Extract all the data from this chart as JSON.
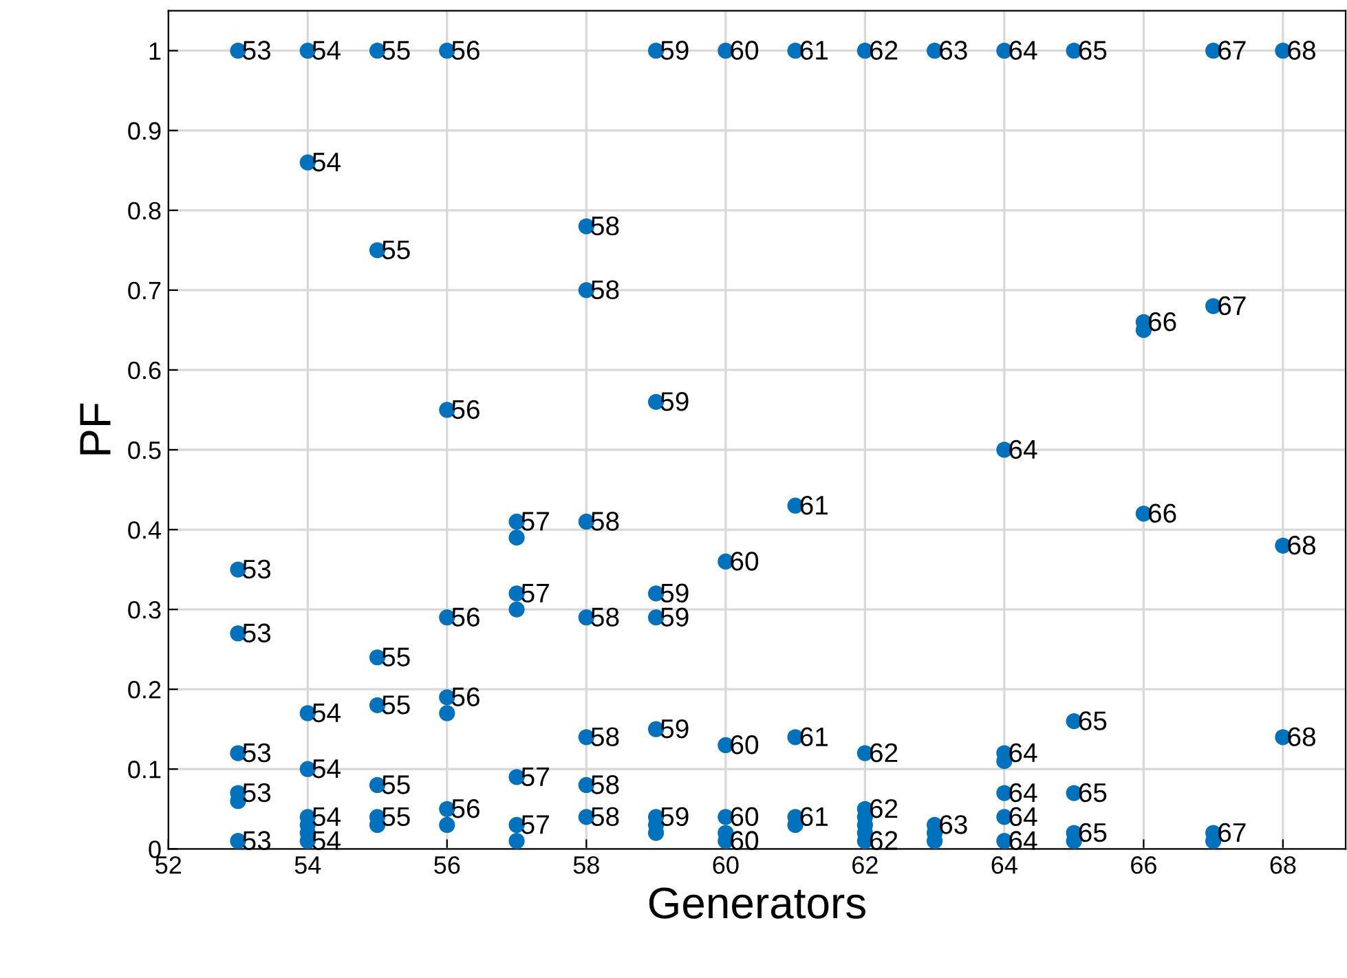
{
  "chart_data": {
    "type": "scatter",
    "xlabel": "Generators",
    "ylabel": "PF",
    "xlim": [
      52,
      68.9
    ],
    "ylim": [
      0,
      1.05
    ],
    "xticks": [
      52,
      54,
      56,
      58,
      60,
      62,
      64,
      66,
      68
    ],
    "yticks": [
      0,
      0.1,
      0.2,
      0.3,
      0.4,
      0.5,
      0.6,
      0.7,
      0.8,
      0.9,
      1
    ],
    "grid": true,
    "marker": "circle",
    "series": [
      {
        "color": "#0072bd",
        "x": [
          53,
          53,
          53,
          53,
          53,
          53,
          53,
          54,
          54,
          54,
          54,
          54,
          54,
          54,
          54,
          55,
          55,
          55,
          55,
          55,
          55,
          55,
          56,
          56,
          56,
          56,
          56,
          56,
          56,
          57,
          57,
          57,
          57,
          57,
          57,
          57,
          58,
          58,
          58,
          58,
          58,
          58,
          58,
          59,
          59,
          59,
          59,
          59,
          59,
          59,
          59,
          60,
          60,
          60,
          60,
          60,
          60,
          61,
          61,
          61,
          61,
          61,
          62,
          62,
          62,
          62,
          62,
          62,
          62,
          63,
          63,
          63,
          63,
          64,
          64,
          64,
          64,
          64,
          64,
          64,
          65,
          65,
          65,
          65,
          65,
          66,
          66,
          66,
          67,
          67,
          67,
          67,
          68,
          68,
          68
        ],
        "values": [
          1,
          0.35,
          0.27,
          0.12,
          0.07,
          0.06,
          0.01,
          1,
          0.86,
          0.17,
          0.1,
          0.04,
          0.03,
          0.02,
          0.01,
          1,
          0.75,
          0.24,
          0.18,
          0.08,
          0.04,
          0.03,
          1,
          0.55,
          0.29,
          0.19,
          0.17,
          0.05,
          0.03,
          0.41,
          0.39,
          0.32,
          0.3,
          0.09,
          0.03,
          0.01,
          0.78,
          0.7,
          0.41,
          0.29,
          0.14,
          0.08,
          0.04,
          1,
          0.56,
          0.32,
          0.29,
          0.15,
          0.04,
          0.03,
          0.02,
          1,
          0.36,
          0.13,
          0.04,
          0.02,
          0.01,
          1,
          0.43,
          0.14,
          0.04,
          0.03,
          1,
          0.12,
          0.05,
          0.04,
          0.03,
          0.02,
          0.01,
          1,
          0.03,
          0.02,
          0.01,
          1,
          0.5,
          0.12,
          0.11,
          0.07,
          0.04,
          0.01,
          1,
          0.16,
          0.07,
          0.02,
          0.01,
          0.66,
          0.65,
          0.42,
          1,
          0.68,
          0.02,
          0.01,
          1,
          0.38,
          0.14
        ]
      }
    ],
    "annotations": [
      {
        "text": "53",
        "x": 53,
        "y": 1
      },
      {
        "text": "53",
        "x": 53,
        "y": 0.35
      },
      {
        "text": "53",
        "x": 53,
        "y": 0.27
      },
      {
        "text": "53",
        "x": 53,
        "y": 0.12
      },
      {
        "text": "53",
        "x": 53,
        "y": 0.07
      },
      {
        "text": "53",
        "x": 53,
        "y": 0.01
      },
      {
        "text": "54",
        "x": 54,
        "y": 1
      },
      {
        "text": "54",
        "x": 54,
        "y": 0.86
      },
      {
        "text": "54",
        "x": 54,
        "y": 0.17
      },
      {
        "text": "54",
        "x": 54,
        "y": 0.1
      },
      {
        "text": "54",
        "x": 54,
        "y": 0.04
      },
      {
        "text": "54",
        "x": 54,
        "y": 0.01
      },
      {
        "text": "55",
        "x": 55,
        "y": 1
      },
      {
        "text": "55",
        "x": 55,
        "y": 0.75
      },
      {
        "text": "55",
        "x": 55,
        "y": 0.24
      },
      {
        "text": "55",
        "x": 55,
        "y": 0.18
      },
      {
        "text": "55",
        "x": 55,
        "y": 0.08
      },
      {
        "text": "55",
        "x": 55,
        "y": 0.04
      },
      {
        "text": "56",
        "x": 56,
        "y": 1
      },
      {
        "text": "56",
        "x": 56,
        "y": 0.55
      },
      {
        "text": "56",
        "x": 56,
        "y": 0.29
      },
      {
        "text": "56",
        "x": 56,
        "y": 0.19
      },
      {
        "text": "56",
        "x": 56,
        "y": 0.05
      },
      {
        "text": "57",
        "x": 57,
        "y": 0.41
      },
      {
        "text": "57",
        "x": 57,
        "y": 0.32
      },
      {
        "text": "57",
        "x": 57,
        "y": 0.09
      },
      {
        "text": "57",
        "x": 57,
        "y": 0.03
      },
      {
        "text": "58",
        "x": 58,
        "y": 0.78
      },
      {
        "text": "58",
        "x": 58,
        "y": 0.7
      },
      {
        "text": "58",
        "x": 58,
        "y": 0.41
      },
      {
        "text": "58",
        "x": 58,
        "y": 0.29
      },
      {
        "text": "58",
        "x": 58,
        "y": 0.14
      },
      {
        "text": "58",
        "x": 58,
        "y": 0.08
      },
      {
        "text": "58",
        "x": 58,
        "y": 0.04
      },
      {
        "text": "59",
        "x": 59,
        "y": 1
      },
      {
        "text": "59",
        "x": 59,
        "y": 0.56
      },
      {
        "text": "59",
        "x": 59,
        "y": 0.32
      },
      {
        "text": "59",
        "x": 59,
        "y": 0.29
      },
      {
        "text": "59",
        "x": 59,
        "y": 0.15
      },
      {
        "text": "59",
        "x": 59,
        "y": 0.04
      },
      {
        "text": "60",
        "x": 60,
        "y": 1
      },
      {
        "text": "60",
        "x": 60,
        "y": 0.36
      },
      {
        "text": "60",
        "x": 60,
        "y": 0.13
      },
      {
        "text": "60",
        "x": 60,
        "y": 0.04
      },
      {
        "text": "60",
        "x": 60,
        "y": 0.01
      },
      {
        "text": "61",
        "x": 61,
        "y": 1
      },
      {
        "text": "61",
        "x": 61,
        "y": 0.43
      },
      {
        "text": "61",
        "x": 61,
        "y": 0.14
      },
      {
        "text": "61",
        "x": 61,
        "y": 0.04
      },
      {
        "text": "62",
        "x": 62,
        "y": 1
      },
      {
        "text": "62",
        "x": 62,
        "y": 0.12
      },
      {
        "text": "62",
        "x": 62,
        "y": 0.05
      },
      {
        "text": "62",
        "x": 62,
        "y": 0.01
      },
      {
        "text": "63",
        "x": 63,
        "y": 1
      },
      {
        "text": "63",
        "x": 63,
        "y": 0.03
      },
      {
        "text": "64",
        "x": 64,
        "y": 1
      },
      {
        "text": "64",
        "x": 64,
        "y": 0.5
      },
      {
        "text": "64",
        "x": 64,
        "y": 0.12
      },
      {
        "text": "64",
        "x": 64,
        "y": 0.07
      },
      {
        "text": "64",
        "x": 64,
        "y": 0.04
      },
      {
        "text": "64",
        "x": 64,
        "y": 0.01
      },
      {
        "text": "65",
        "x": 65,
        "y": 1
      },
      {
        "text": "65",
        "x": 65,
        "y": 0.16
      },
      {
        "text": "65",
        "x": 65,
        "y": 0.07
      },
      {
        "text": "65",
        "x": 65,
        "y": 0.02
      },
      {
        "text": "66",
        "x": 66,
        "y": 0.66
      },
      {
        "text": "66",
        "x": 66,
        "y": 0.42
      },
      {
        "text": "67",
        "x": 67,
        "y": 1
      },
      {
        "text": "67",
        "x": 67,
        "y": 0.68
      },
      {
        "text": "67",
        "x": 67,
        "y": 0.02
      },
      {
        "text": "68",
        "x": 68,
        "y": 1
      },
      {
        "text": "68",
        "x": 68,
        "y": 0.38
      },
      {
        "text": "68",
        "x": 68,
        "y": 0.14
      }
    ]
  }
}
